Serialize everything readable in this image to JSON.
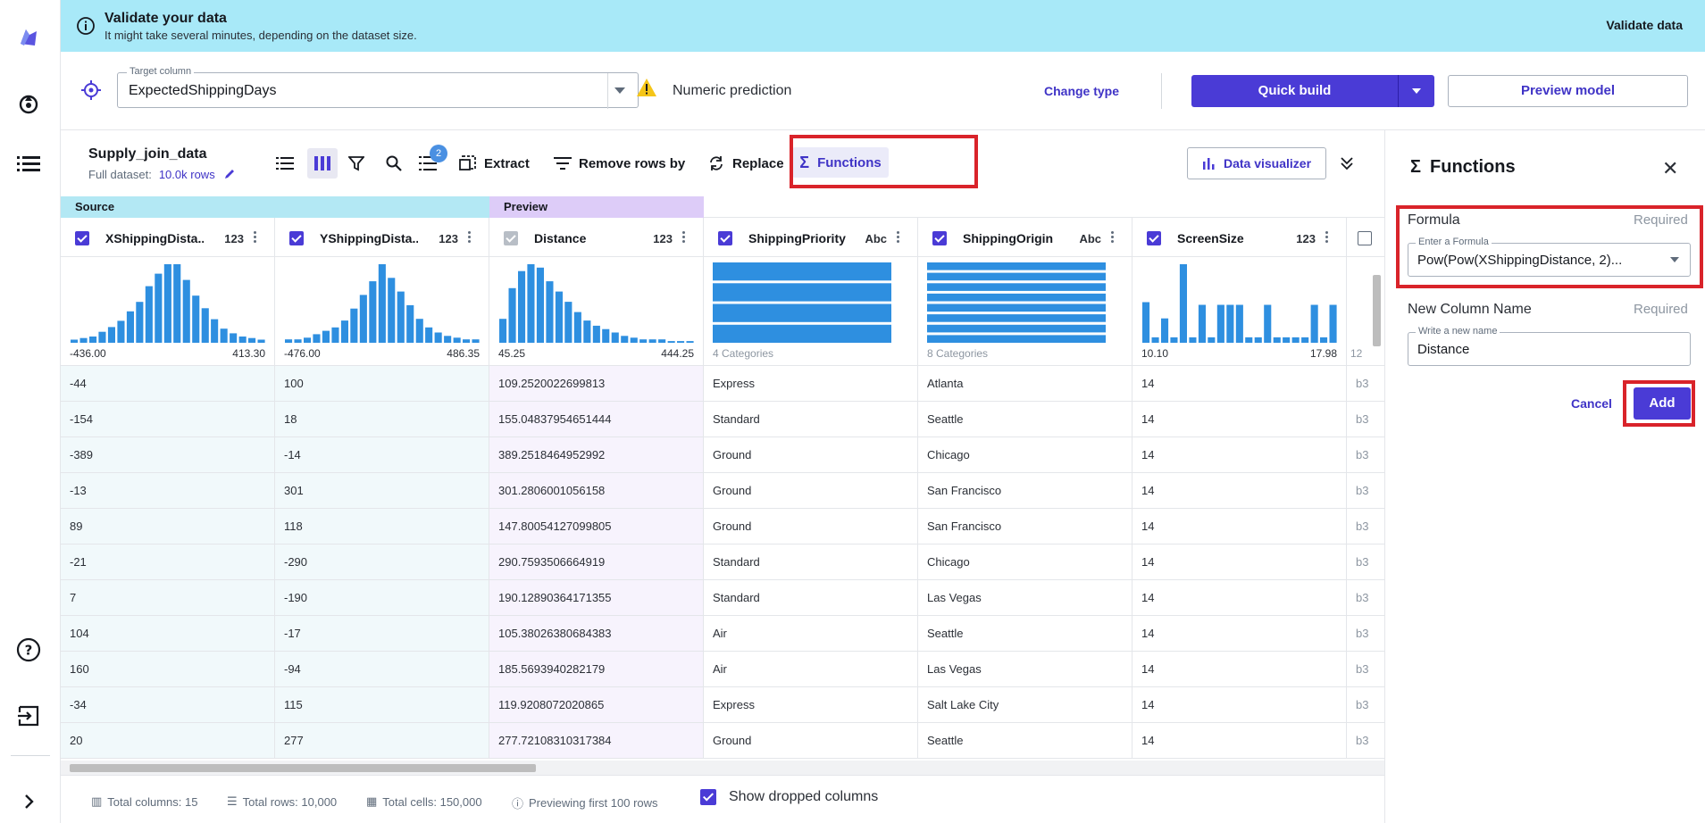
{
  "banner": {
    "title": "Validate your data",
    "subtitle": "It might take several minutes, depending on the dataset size.",
    "validate_label": "Validate data"
  },
  "target": {
    "label": "Target column",
    "value": "ExpectedShippingDays",
    "problem_type": "Numeric prediction",
    "change_type_label": "Change type",
    "quick_build_label": "Quick build",
    "preview_model_label": "Preview model"
  },
  "dataset": {
    "name": "Supply_join_data",
    "full_label": "Full dataset:",
    "rows_label": "10.0k rows"
  },
  "toolbar": {
    "badge_count": "2",
    "extract_label": "Extract",
    "remove_rows_label": "Remove rows by",
    "replace_label": "Replace",
    "functions_label": "Functions",
    "data_visualizer_label": "Data visualizer"
  },
  "groups": {
    "source": "Source",
    "preview": "Preview"
  },
  "columns": [
    {
      "name": "XShippingDista...",
      "type": "123",
      "min": "-436.00",
      "max": "413.30",
      "hist": [
        2,
        3,
        4,
        7,
        10,
        14,
        20,
        26,
        36,
        44,
        50,
        50,
        40,
        30,
        22,
        15,
        9,
        6,
        4,
        3,
        2
      ]
    },
    {
      "name": "YShippingDista...",
      "type": "123",
      "min": "-476.00",
      "max": "486.35",
      "hist": [
        2,
        2,
        3,
        5,
        7,
        9,
        13,
        20,
        28,
        36,
        46,
        38,
        30,
        22,
        14,
        9,
        6,
        4,
        3,
        2,
        2
      ]
    },
    {
      "name": "Distance",
      "type": "123",
      "min": "45.25",
      "max": "444.25",
      "hist": [
        14,
        32,
        42,
        46,
        44,
        36,
        30,
        24,
        18,
        13,
        10,
        8,
        6,
        4,
        3,
        2,
        2,
        2,
        1,
        1,
        1
      ]
    },
    {
      "name": "ShippingPriority",
      "type": "Abc",
      "categories": "4 Categories",
      "bars": 4
    },
    {
      "name": "ShippingOrigin",
      "type": "Abc",
      "categories": "8 Categories",
      "bars": 8
    },
    {
      "name": "ScreenSize",
      "type": "123",
      "min": "10.10",
      "max": "17.98",
      "hist": [
        30,
        4,
        18,
        4,
        58,
        4,
        28,
        4,
        28,
        28,
        28,
        4,
        4,
        28,
        4,
        4,
        4,
        4,
        28,
        4,
        28
      ]
    }
  ],
  "rows": [
    [
      "-44",
      "100",
      "109.2520022699813",
      "Express",
      "Atlanta",
      "14",
      "b3"
    ],
    [
      "-154",
      "18",
      "155.04837954651444",
      "Standard",
      "Seattle",
      "14",
      "b3"
    ],
    [
      "-389",
      "-14",
      "389.2518464952992",
      "Ground",
      "Chicago",
      "14",
      "b3"
    ],
    [
      "-13",
      "301",
      "301.2806001056158",
      "Ground",
      "San Francisco",
      "14",
      "b3"
    ],
    [
      "89",
      "118",
      "147.80054127099805",
      "Ground",
      "San Francisco",
      "14",
      "b3"
    ],
    [
      "-21",
      "-290",
      "290.7593506664919",
      "Standard",
      "Chicago",
      "14",
      "b3"
    ],
    [
      "7",
      "-190",
      "190.12890364171355",
      "Standard",
      "Las Vegas",
      "14",
      "b3"
    ],
    [
      "104",
      "-17",
      "105.38026380684383",
      "Air",
      "Seattle",
      "14",
      "b3"
    ],
    [
      "160",
      "-94",
      "185.5693940282179",
      "Air",
      "Las Vegas",
      "14",
      "b3"
    ],
    [
      "-34",
      "115",
      "119.9208072020865",
      "Express",
      "Salt Lake City",
      "14",
      "b3"
    ],
    [
      "20",
      "277",
      "277.72108310317384",
      "Ground",
      "Seattle",
      "14",
      "b3"
    ]
  ],
  "partial_column": {
    "histo_label": "12"
  },
  "footer": {
    "total_columns": "Total columns: 15",
    "total_rows": "Total rows: 10,000",
    "total_cells": "Total cells: 150,000",
    "previewing": "Previewing first 100 rows",
    "show_dropped": "Show dropped columns"
  },
  "panel": {
    "title": "Functions",
    "formula_label": "Formula",
    "formula_required": "Required",
    "formula_placeholder_label": "Enter a Formula",
    "formula_value": "Pow(Pow(XShippingDistance, 2)...",
    "name_label": "New Column Name",
    "name_required": "Required",
    "name_placeholder_label": "Write a new name",
    "name_value": "Distance",
    "cancel_label": "Cancel",
    "add_label": "Add"
  },
  "colors": {
    "accent": "#4a3bd6",
    "banner_bg": "#a8e9f8",
    "highlight": "#d9232a",
    "histogram": "#2e8fe0"
  }
}
